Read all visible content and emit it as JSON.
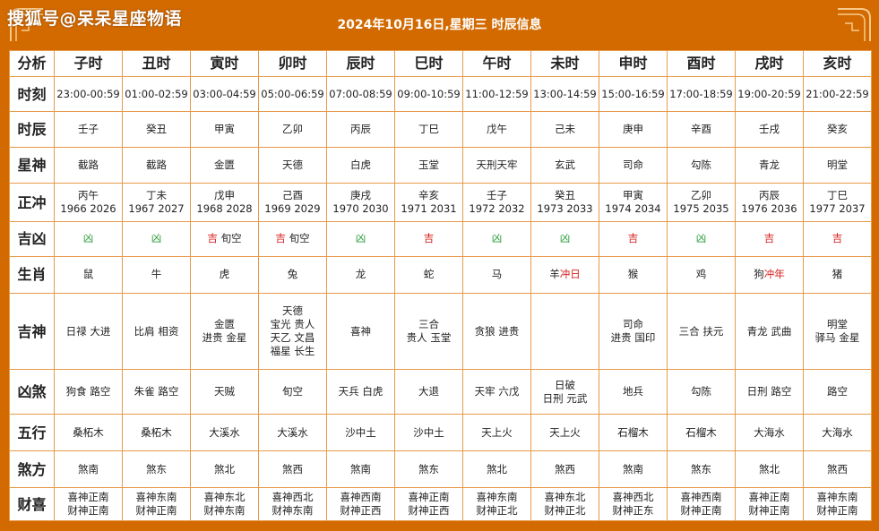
{
  "header": {
    "watermark": "搜狐号@呆呆星座物语",
    "title": "2024年10月16日,星期三 时辰信息"
  },
  "colors": {
    "frame": "#d26a00",
    "border": "#e79a4a",
    "good": "#d6201c",
    "bad": "#2a9d3a"
  },
  "corner_label": "分析",
  "columns": [
    "子时",
    "丑时",
    "寅时",
    "卯时",
    "辰时",
    "巳时",
    "午时",
    "未时",
    "申时",
    "酉时",
    "戌时",
    "亥时"
  ],
  "rows": {
    "shike": {
      "label": "时刻",
      "cells": [
        "23:00-00:59",
        "01:00-02:59",
        "03:00-04:59",
        "05:00-06:59",
        "07:00-08:59",
        "09:00-10:59",
        "11:00-12:59",
        "13:00-14:59",
        "15:00-16:59",
        "17:00-18:59",
        "19:00-20:59",
        "21:00-22:59"
      ]
    },
    "shichen": {
      "label": "时辰",
      "cells": [
        "壬子",
        "癸丑",
        "甲寅",
        "乙卯",
        "丙辰",
        "丁巳",
        "戊午",
        "己未",
        "庚申",
        "辛酉",
        "壬戌",
        "癸亥"
      ]
    },
    "xingshen": {
      "label": "星神",
      "cells": [
        "截路",
        "截路",
        "金匮",
        "天德",
        "白虎",
        "玉堂",
        "天刑天牢",
        "玄武",
        "司命",
        "勾陈",
        "青龙",
        "明堂"
      ]
    },
    "zhengchong": {
      "label": "正冲",
      "cells": [
        {
          "a": "丙午",
          "b": "1966 2026"
        },
        {
          "a": "丁未",
          "b": "1967 2027"
        },
        {
          "a": "戊申",
          "b": "1968 2028"
        },
        {
          "a": "己酉",
          "b": "1969 2029"
        },
        {
          "a": "庚戌",
          "b": "1970 2030"
        },
        {
          "a": "辛亥",
          "b": "1971 2031"
        },
        {
          "a": "壬子",
          "b": "1972 2032"
        },
        {
          "a": "癸丑",
          "b": "1973 2033"
        },
        {
          "a": "甲寅",
          "b": "1974 2034"
        },
        {
          "a": "乙卯",
          "b": "1975 2035"
        },
        {
          "a": "丙辰",
          "b": "1976 2036"
        },
        {
          "a": "丁巳",
          "b": "1977 2037"
        }
      ]
    },
    "jixiong": {
      "label": "吉凶",
      "cells": [
        {
          "v": "凶",
          "k": "bad",
          "x": ""
        },
        {
          "v": "凶",
          "k": "bad",
          "x": ""
        },
        {
          "v": "吉",
          "k": "good",
          "x": "旬空"
        },
        {
          "v": "吉",
          "k": "good",
          "x": "旬空"
        },
        {
          "v": "凶",
          "k": "bad",
          "x": ""
        },
        {
          "v": "吉",
          "k": "good",
          "x": ""
        },
        {
          "v": "凶",
          "k": "bad",
          "x": ""
        },
        {
          "v": "凶",
          "k": "bad",
          "x": ""
        },
        {
          "v": "吉",
          "k": "good",
          "x": ""
        },
        {
          "v": "凶",
          "k": "bad",
          "x": ""
        },
        {
          "v": "吉",
          "k": "good",
          "x": ""
        },
        {
          "v": "吉",
          "k": "good",
          "x": ""
        }
      ]
    },
    "shengxiao": {
      "label": "生肖",
      "cells": [
        {
          "a": "鼠",
          "r": ""
        },
        {
          "a": "牛",
          "r": ""
        },
        {
          "a": "虎",
          "r": ""
        },
        {
          "a": "兔",
          "r": ""
        },
        {
          "a": "龙",
          "r": ""
        },
        {
          "a": "蛇",
          "r": ""
        },
        {
          "a": "马",
          "r": ""
        },
        {
          "a": "羊",
          "r": "冲日"
        },
        {
          "a": "猴",
          "r": ""
        },
        {
          "a": "鸡",
          "r": ""
        },
        {
          "a": "狗",
          "r": "冲年"
        },
        {
          "a": "猪",
          "r": ""
        }
      ]
    },
    "jishen": {
      "label": "吉神",
      "cells": [
        [
          "日禄 大进"
        ],
        [
          "比肩 相资"
        ],
        [
          "金匮",
          "进贵 金星"
        ],
        [
          "天德",
          "宝光 贵人",
          "天乙 文昌",
          "福星 长生"
        ],
        [
          "喜神"
        ],
        [
          "三合",
          "贵人 玉堂"
        ],
        [
          "贪狼 进贵"
        ],
        [
          ""
        ],
        [
          "司命",
          "进贵 国印"
        ],
        [
          "三合 扶元"
        ],
        [
          "青龙 武曲"
        ],
        [
          "明堂",
          "驿马 金星"
        ]
      ]
    },
    "xiongsha": {
      "label": "凶煞",
      "cells": [
        [
          "狗食 路空"
        ],
        [
          "朱雀 路空"
        ],
        [
          "天贼"
        ],
        [
          "旬空"
        ],
        [
          "天兵 白虎"
        ],
        [
          "大退"
        ],
        [
          "天牢 六戊"
        ],
        [
          "日破",
          "日刑 元武"
        ],
        [
          "地兵"
        ],
        [
          "勾陈"
        ],
        [
          "日刑 路空"
        ],
        [
          "路空"
        ]
      ]
    },
    "wuxing": {
      "label": "五行",
      "cells": [
        "桑柘木",
        "桑柘木",
        "大溪水",
        "大溪水",
        "沙中土",
        "沙中土",
        "天上火",
        "天上火",
        "石榴木",
        "石榴木",
        "大海水",
        "大海水"
      ]
    },
    "shafang": {
      "label": "煞方",
      "cells": [
        "煞南",
        "煞东",
        "煞北",
        "煞西",
        "煞南",
        "煞东",
        "煞北",
        "煞西",
        "煞南",
        "煞东",
        "煞北",
        "煞西"
      ]
    },
    "caixi": {
      "label": "财喜",
      "cells": [
        {
          "a": "喜神正南",
          "b": "财神正南"
        },
        {
          "a": "喜神东南",
          "b": "财神正南"
        },
        {
          "a": "喜神东北",
          "b": "财神东南"
        },
        {
          "a": "喜神西北",
          "b": "财神东南"
        },
        {
          "a": "喜神西南",
          "b": "财神正西"
        },
        {
          "a": "喜神正南",
          "b": "财神正西"
        },
        {
          "a": "喜神东南",
          "b": "财神正北"
        },
        {
          "a": "喜神东北",
          "b": "财神正北"
        },
        {
          "a": "喜神西北",
          "b": "财神正东"
        },
        {
          "a": "喜神西南",
          "b": "财神正南"
        },
        {
          "a": "喜神正南",
          "b": "财神正南"
        },
        {
          "a": "喜神东南",
          "b": "财神正南"
        }
      ]
    }
  }
}
